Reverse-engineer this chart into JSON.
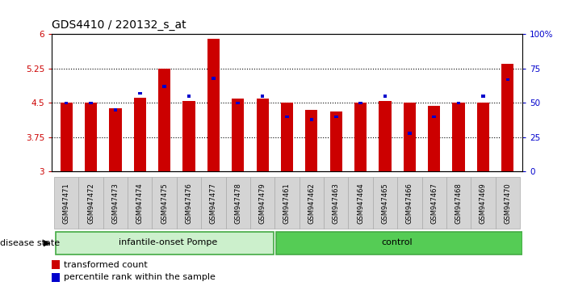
{
  "title": "GDS4410 / 220132_s_at",
  "samples": [
    "GSM947471",
    "GSM947472",
    "GSM947473",
    "GSM947474",
    "GSM947475",
    "GSM947476",
    "GSM947477",
    "GSM947478",
    "GSM947479",
    "GSM947461",
    "GSM947462",
    "GSM947463",
    "GSM947464",
    "GSM947465",
    "GSM947466",
    "GSM947467",
    "GSM947468",
    "GSM947469",
    "GSM947470"
  ],
  "transformed_count": [
    4.5,
    4.5,
    4.38,
    4.62,
    5.25,
    4.55,
    5.9,
    4.6,
    4.6,
    4.5,
    4.35,
    4.32,
    4.5,
    4.55,
    4.5,
    4.44,
    4.5,
    4.5,
    5.35
  ],
  "percentile_rank": [
    50,
    50,
    45,
    57,
    62,
    55,
    68,
    50,
    55,
    40,
    38,
    40,
    50,
    55,
    28,
    40,
    50,
    55,
    67
  ],
  "ymin": 3.0,
  "ymax": 6.0,
  "yticks": [
    3,
    3.75,
    4.5,
    5.25,
    6
  ],
  "ytick_labels_left": [
    "3",
    "3.75",
    "4.5",
    "5.25",
    "6"
  ],
  "ytick_labels_right": [
    "0",
    "25",
    "50",
    "75",
    "100%"
  ],
  "bar_color": "#cc0000",
  "percentile_color": "#0000cc",
  "group1_label": "infantile-onset Pompe",
  "group2_label": "control",
  "group1_color": "#ccf0cc",
  "group2_color": "#55cc55",
  "group1_count": 9,
  "group2_count": 10,
  "legend_bar": "transformed count",
  "legend_pct": "percentile rank within the sample",
  "disease_state_label": "disease state",
  "tick_label_area_color": "#d4d4d4",
  "title_fontsize": 10,
  "tick_fontsize": 7.5
}
